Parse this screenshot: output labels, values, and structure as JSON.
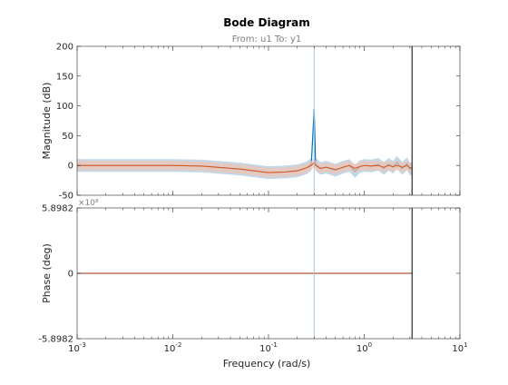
{
  "figure": {
    "title": "Bode Diagram",
    "subtitle": "From: u1  To: y1",
    "xlabel": "Frequency  (rad/s)"
  },
  "chart_data": {
    "type": "line",
    "title": "Bode Diagram",
    "subtitle": "From: u1  To: y1",
    "xlabel": "Frequency  (rad/s)",
    "xscale": "log",
    "xlim": [
      0.001,
      10
    ],
    "x_ticks": [
      0.001,
      0.01,
      0.1,
      1,
      10
    ],
    "x_tick_labels": [
      {
        "base": "10",
        "exp": "-3"
      },
      {
        "base": "10",
        "exp": "-2"
      },
      {
        "base": "10",
        "exp": "-1"
      },
      {
        "base": "10",
        "exp": "0"
      },
      {
        "base": "10",
        "exp": "1"
      }
    ],
    "colors": {
      "estimate": "#0072bd",
      "confidence_band": "#a9c6dd",
      "model": "#d95319",
      "model_band": "#f2c3b0",
      "reference": "#000000",
      "axes": "#262626",
      "label_text": "#7f7f7f"
    },
    "reference_lines": [
      {
        "type": "vertical",
        "x": 0.3,
        "color": "#a9c6dd"
      },
      {
        "type": "vertical",
        "x": 3.16,
        "color": "#000000"
      }
    ],
    "panels": [
      {
        "name": "magnitude",
        "ylabel": "Magnitude (dB)",
        "ylim": [
          -50,
          200
        ],
        "y_ticks": [
          -50,
          0,
          50,
          100,
          150,
          200
        ],
        "y_tick_labels": [
          "-50",
          "0",
          "50",
          "100",
          "150",
          "200"
        ],
        "grid": false,
        "series": [
          {
            "role": "estimate",
            "x": [
              0.001,
              0.002,
              0.005,
              0.01,
              0.02,
              0.05,
              0.1,
              0.15,
              0.2,
              0.25,
              0.28,
              0.3,
              0.31,
              0.35,
              0.4,
              0.5,
              0.6,
              0.7,
              0.8,
              0.9,
              1.0,
              1.2,
              1.4,
              1.6,
              1.8,
              2.0,
              2.2,
              2.5,
              2.8,
              3.0,
              3.16
            ],
            "y": [
              0,
              0,
              0,
              0,
              -1,
              -6,
              -12,
              -11,
              -9,
              -4,
              2,
              95,
              2,
              -5,
              -3,
              -8,
              -3,
              0,
              -10,
              -2,
              0,
              -1,
              2,
              -5,
              2,
              -3,
              5,
              -5,
              3,
              -6,
              -5
            ]
          },
          {
            "role": "model",
            "x": [
              0.001,
              0.002,
              0.005,
              0.01,
              0.02,
              0.05,
              0.1,
              0.15,
              0.2,
              0.25,
              0.28,
              0.3,
              0.31,
              0.35,
              0.4,
              0.5,
              0.6,
              0.7,
              0.8,
              0.9,
              1.0,
              1.2,
              1.4,
              1.6,
              1.8,
              2.0,
              2.2,
              2.5,
              2.8,
              3.0,
              3.16
            ],
            "y": [
              0,
              0,
              0,
              0,
              -1,
              -6,
              -12,
              -11,
              -9,
              -4,
              0,
              5,
              0,
              -5,
              -3,
              -7,
              -3,
              0,
              -5,
              -2,
              0,
              -1,
              0,
              -3,
              0,
              -2,
              0,
              -3,
              0,
              -4,
              -4
            ]
          }
        ]
      },
      {
        "name": "phase",
        "ylabel": "Phase (deg)",
        "y_multiplier": "×10⁸",
        "ylim": [
          -5.8982,
          5.8982
        ],
        "y_ticks": [
          -5.8982,
          0,
          5.8982
        ],
        "y_tick_labels": [
          "-5.8982",
          "0",
          "5.8982"
        ],
        "grid": false,
        "series": [
          {
            "role": "estimate",
            "x": [
              0.001,
              3.16
            ],
            "y": [
              0,
              0
            ]
          },
          {
            "role": "model",
            "x": [
              0.001,
              3.16
            ],
            "y": [
              0,
              0
            ]
          }
        ]
      }
    ]
  }
}
